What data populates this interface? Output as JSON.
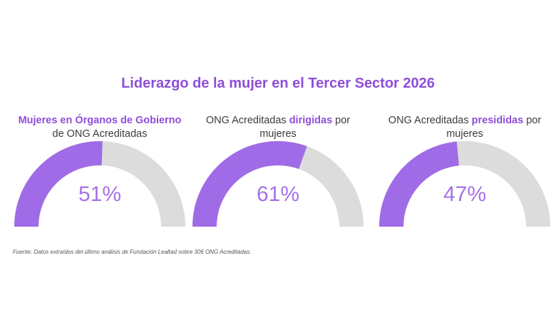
{
  "title": "Liderazgo de la mujer en el Tercer Sector 2026",
  "source": "Fuente: Datos extraídos del último análisis de Fundación Lealtad sobre 306 ONG Acreditadas.",
  "colors": {
    "fill": "#a06be6",
    "track": "#dcdcdc",
    "accent": "#8e4ed8"
  },
  "gauges": [
    {
      "line1_highlight": "Mujeres en  Órganos de Gobierno",
      "line2": "de ONG Acreditadas",
      "value_label": "51%"
    },
    {
      "line1_prefix": "ONG Acreditadas ",
      "line1_highlight": "dirigidas",
      "line1_suffix": " por",
      "line2": "mujeres",
      "value_label": "61%"
    },
    {
      "line1_prefix": "ONG Acreditadas ",
      "line1_highlight": "presididas",
      "line1_suffix": " por",
      "line2": "mujeres",
      "value_label": "47%"
    }
  ],
  "chart_data": {
    "type": "gauge",
    "title": "Liderazgo de la mujer en el Tercer Sector 2026",
    "unit": "%",
    "range": [
      0,
      100
    ],
    "items": [
      {
        "label": "Mujeres en Órganos de Gobierno de ONG Acreditadas",
        "value": 51
      },
      {
        "label": "ONG Acreditadas dirigidas por mujeres",
        "value": 61
      },
      {
        "label": "ONG Acreditadas presididas por mujeres",
        "value": 47
      }
    ]
  }
}
